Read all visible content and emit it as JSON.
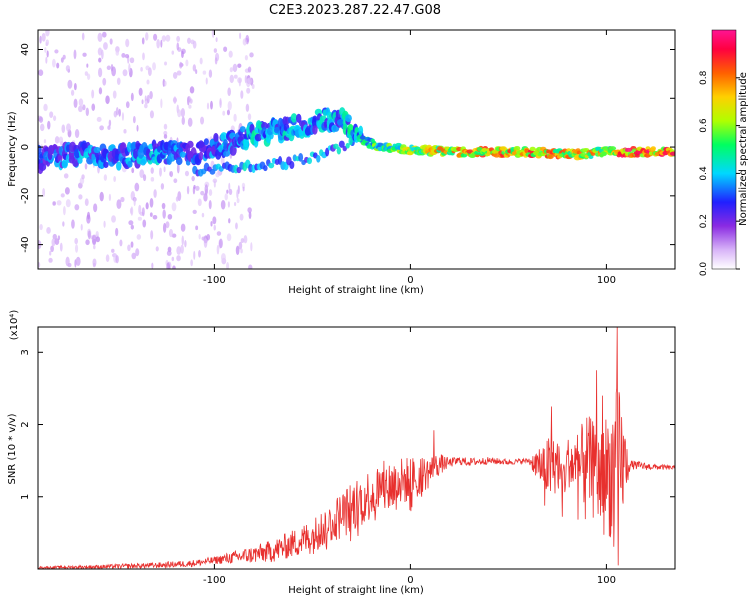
{
  "title": "C2E3.2023.287.22.47.G08",
  "chart_data": [
    {
      "type": "heatmap",
      "xlabel": "Height of straight line (km)",
      "ylabel": "Frequency (Hz)",
      "xlim": [
        -190,
        135
      ],
      "ylim": [
        -50,
        48
      ],
      "x_ticks": [
        -100,
        0,
        100
      ],
      "x_tick_labels": [
        "-100",
        "0",
        "100"
      ],
      "y_ticks": [
        -40,
        -20,
        0,
        20,
        40
      ],
      "y_tick_labels": [
        "-40",
        "-20",
        "0",
        "20",
        "40"
      ],
      "colorbar": {
        "label": "Normalized spectral amplitude",
        "range": [
          0,
          1
        ],
        "ticks": [
          0.0,
          0.2,
          0.4,
          0.6,
          0.8
        ],
        "tick_labels": [
          "0.0",
          "0.2",
          "0.4",
          "0.6",
          "0.8"
        ],
        "colors": [
          "#ffffff",
          "#d8b4f8",
          "#8a2be2",
          "#2020ff",
          "#00d8ff",
          "#00ff60",
          "#b0ff00",
          "#ffd000",
          "#ff6000",
          "#ff0040",
          "#ff1493"
        ]
      },
      "ridge": [
        {
          "x": -190,
          "f": -5,
          "amp": 0.35
        },
        {
          "x": -170,
          "f": -3,
          "amp": 0.4
        },
        {
          "x": -150,
          "f": -4,
          "amp": 0.38
        },
        {
          "x": -130,
          "f": -2,
          "amp": 0.42
        },
        {
          "x": -110,
          "f": -3,
          "amp": 0.35
        },
        {
          "x": -95,
          "f": 1,
          "amp": 0.4
        },
        {
          "x": -80,
          "f": 5,
          "amp": 0.45
        },
        {
          "x": -65,
          "f": 7,
          "amp": 0.45
        },
        {
          "x": -50,
          "f": 10,
          "amp": 0.42
        },
        {
          "x": -35,
          "f": 12,
          "amp": 0.45
        },
        {
          "x": -28,
          "f": 4,
          "amp": 0.5
        },
        {
          "x": -15,
          "f": 0,
          "amp": 0.6
        },
        {
          "x": 0,
          "f": -1,
          "amp": 0.7
        },
        {
          "x": 20,
          "f": -2,
          "amp": 0.8
        },
        {
          "x": 60,
          "f": -2,
          "amp": 0.85
        },
        {
          "x": 85,
          "f": -3,
          "amp": 0.8
        },
        {
          "x": 100,
          "f": -2,
          "amp": 0.75
        },
        {
          "x": 110,
          "f": -2,
          "amp": 0.95
        },
        {
          "x": 135,
          "f": -2,
          "amp": 0.9
        }
      ],
      "secondary_branch": [
        {
          "x": -110,
          "f": -10
        },
        {
          "x": -80,
          "f": -8
        },
        {
          "x": -60,
          "f": -6
        },
        {
          "x": -45,
          "f": -3
        },
        {
          "x": -30,
          "f": 2
        }
      ]
    },
    {
      "type": "line",
      "xlabel": "Height of straight line (km)",
      "ylabel": "SNR (10 * v/v)",
      "y_multiplier": "(x10⁴)",
      "xlim": [
        -190,
        135
      ],
      "ylim": [
        0,
        3.35
      ],
      "x_ticks": [
        -100,
        0,
        100
      ],
      "x_tick_labels": [
        "-100",
        "0",
        "100"
      ],
      "y_ticks": [
        1,
        2,
        3
      ],
      "y_tick_labels": [
        "1",
        "2",
        "3"
      ],
      "color": "#e8302e",
      "series": [
        {
          "x": [
            -190,
            -160,
            -130,
            -110,
            -100,
            -90,
            -80,
            -70,
            -60,
            -50,
            -45,
            -40,
            -35,
            -30,
            -25,
            -20,
            -15,
            -10,
            -5,
            0,
            5,
            10,
            12,
            15,
            20,
            25,
            30,
            40,
            50,
            60,
            65,
            70,
            72,
            75,
            78,
            80,
            85,
            88,
            90,
            95,
            98,
            100,
            102,
            104,
            105,
            106,
            108,
            110,
            120,
            135
          ],
          "y": [
            0.02,
            0.03,
            0.05,
            0.08,
            0.12,
            0.16,
            0.2,
            0.25,
            0.35,
            0.45,
            0.55,
            0.65,
            0.75,
            0.85,
            0.95,
            1.05,
            1.1,
            1.15,
            1.2,
            1.25,
            1.3,
            1.35,
            1.4,
            1.45,
            1.47,
            1.5,
            1.48,
            1.5,
            1.48,
            1.5,
            1.45,
            1.4,
            1.35,
            1.5,
            1.2,
            1.5,
            1.4,
            1.45,
            1.5,
            1.3,
            1.2,
            1.4,
            1.3,
            1.5,
            1.4,
            1.45,
            1.47,
            1.45,
            1.42,
            1.4
          ],
          "noise_envelope": [
            {
              "x": -190,
              "amp": 0.02
            },
            {
              "x": -100,
              "amp": 0.08
            },
            {
              "x": -60,
              "amp": 0.3
            },
            {
              "x": -30,
              "amp": 0.55
            },
            {
              "x": -10,
              "amp": 0.6
            },
            {
              "x": 10,
              "amp": 0.35
            },
            {
              "x": 20,
              "amp": 0.1
            },
            {
              "x": 60,
              "amp": 0.05
            },
            {
              "x": 70,
              "amp": 0.7
            },
            {
              "x": 80,
              "amp": 0.5
            },
            {
              "x": 90,
              "amp": 1.0
            },
            {
              "x": 100,
              "amp": 1.2
            },
            {
              "x": 106,
              "amp": 1.8
            },
            {
              "x": 112,
              "amp": 0.1
            },
            {
              "x": 135,
              "amp": 0.04
            }
          ],
          "spikes": [
            {
              "x": 12,
              "y": 1.92
            },
            {
              "x": 72,
              "y": 2.25
            },
            {
              "x": 95,
              "y": 2.75
            },
            {
              "x": 98,
              "y": 2.4
            },
            {
              "x": 105.5,
              "y": 3.35
            },
            {
              "x": 106,
              "y": 0.05
            }
          ]
        }
      ]
    }
  ]
}
